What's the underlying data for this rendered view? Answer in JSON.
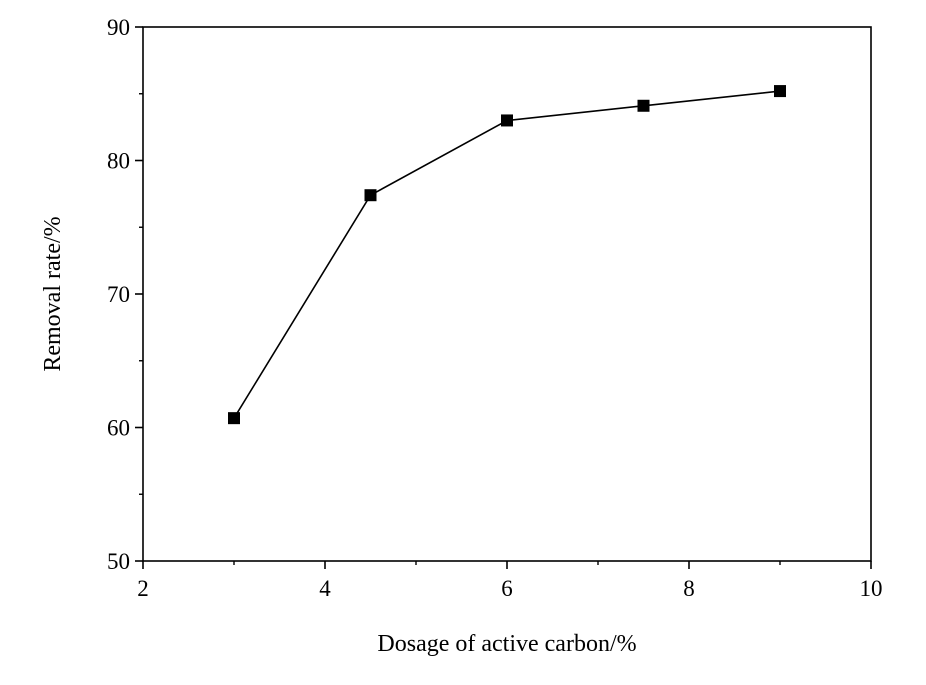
{
  "chart_data": {
    "type": "line",
    "title": "",
    "xlabel": "Dosage of active carbon/%",
    "ylabel": "Removal rate/%",
    "xlim": [
      2,
      10
    ],
    "ylim": [
      50,
      90
    ],
    "xticks": [
      2,
      4,
      6,
      8,
      10
    ],
    "yticks": [
      50,
      60,
      70,
      80,
      90
    ],
    "grid": false,
    "legend": "none",
    "marker": "square",
    "colors": {
      "line": "#000000",
      "marker": "#000000",
      "axes": "#000000"
    },
    "series": [
      {
        "x": [
          3,
          4.5,
          6,
          7.5,
          9
        ],
        "y": [
          60.7,
          77.4,
          83.0,
          84.1,
          85.2
        ]
      }
    ]
  }
}
